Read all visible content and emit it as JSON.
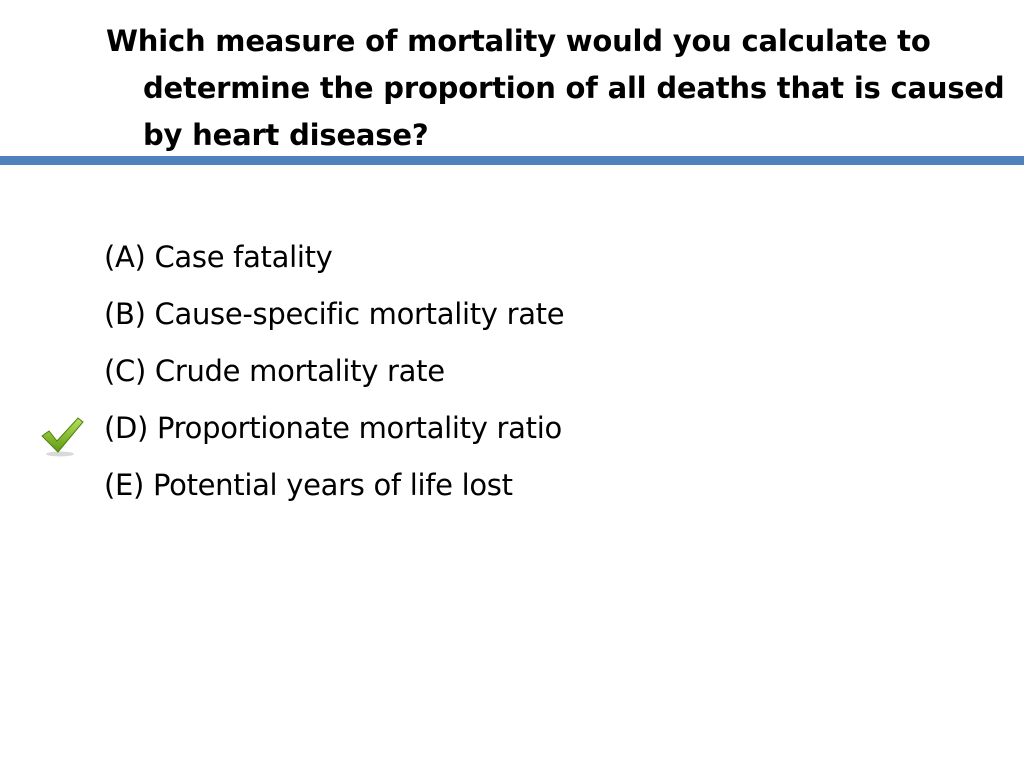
{
  "question": {
    "text": "Which measure of mortality would you  calculate to determine the proportion of all deaths that is caused by heart disease?"
  },
  "options": [
    {
      "label": "(A) Case fatality"
    },
    {
      "label": "(B) Cause-specific mortality rate"
    },
    {
      "label": "(C) Crude mortality rate"
    },
    {
      "label": "(D) Proportionate mortality ratio"
    },
    {
      "label": "(E) Potential years of life lost"
    }
  ],
  "correct_option_index": 3,
  "icons": {
    "correct_marker": "checkmark-icon"
  },
  "colors": {
    "divider": "#4f81bd",
    "checkmark": "#7ab51d"
  }
}
